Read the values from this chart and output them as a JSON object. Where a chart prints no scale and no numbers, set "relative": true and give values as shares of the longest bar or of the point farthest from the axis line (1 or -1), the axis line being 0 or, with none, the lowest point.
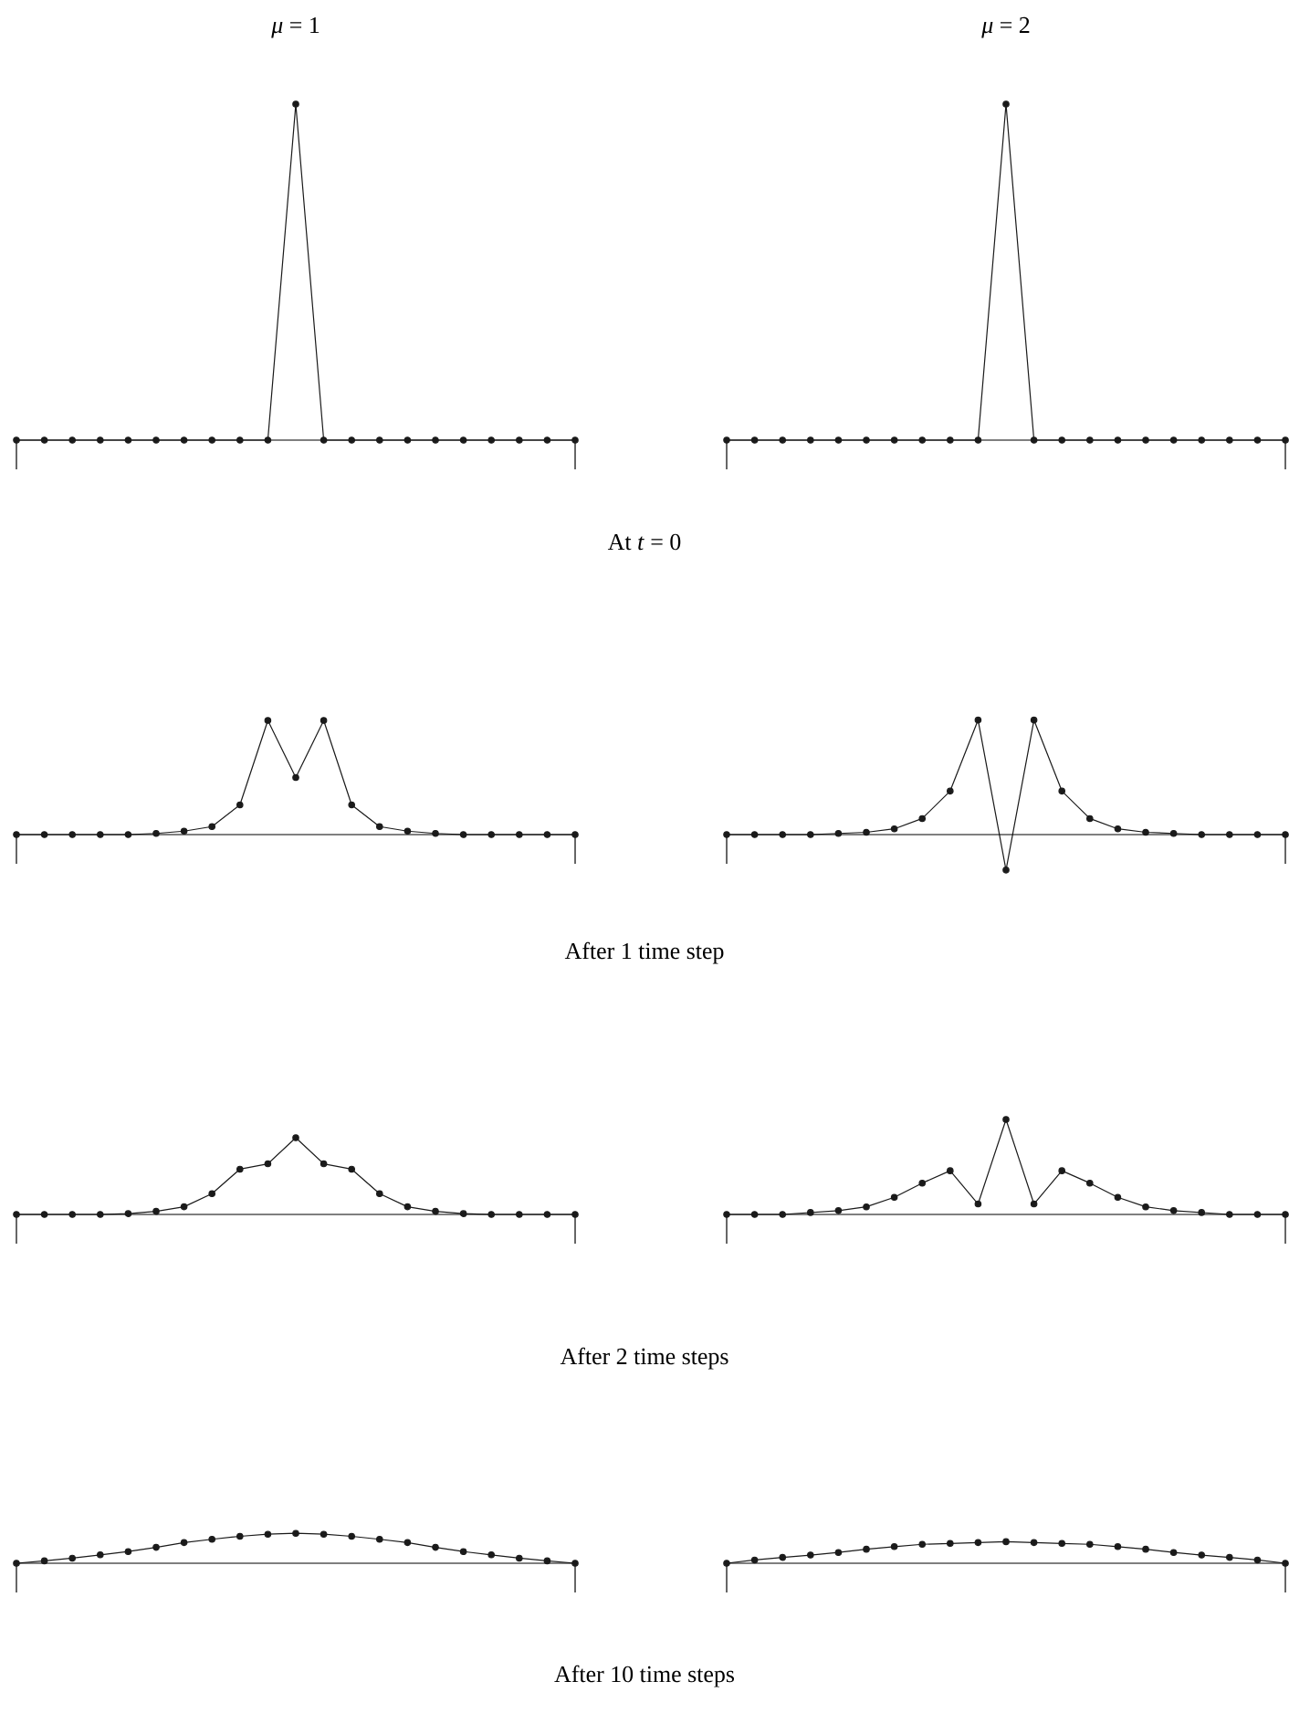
{
  "chart_data": [
    {
      "type": "line",
      "title": "*μ* = 1",
      "annotations": [
        "At *t* = 0"
      ],
      "relative": true,
      "marker": "circle",
      "color": "#1a1a1a",
      "categories": [
        null,
        null,
        null,
        null,
        null,
        null,
        null,
        null,
        null,
        null,
        null,
        null,
        null,
        null,
        null,
        null,
        null,
        null,
        null,
        null,
        null
      ],
      "values": [
        0,
        0,
        0,
        0,
        0,
        0,
        0,
        0,
        0,
        0,
        1,
        0,
        0,
        0,
        0,
        0,
        0,
        0,
        0,
        0,
        0
      ]
    },
    {
      "type": "line",
      "title": "*μ* = 2",
      "relative": true,
      "marker": "circle",
      "color": "#1a1a1a",
      "categories": [
        null,
        null,
        null,
        null,
        null,
        null,
        null,
        null,
        null,
        null,
        null,
        null,
        null,
        null,
        null,
        null,
        null,
        null,
        null,
        null,
        null
      ],
      "values": [
        0,
        0,
        0,
        0,
        0,
        0,
        0,
        0,
        0,
        0,
        1,
        0,
        0,
        0,
        0,
        0,
        0,
        0,
        0,
        0,
        0
      ]
    },
    {
      "type": "line",
      "annotations": [
        "After 1 time step"
      ],
      "relative": true,
      "marker": "circle",
      "color": "#1a1a1a",
      "categories": [
        null,
        null,
        null,
        null,
        null,
        null,
        null,
        null,
        null,
        null,
        null,
        null,
        null,
        null,
        null,
        null,
        null,
        null,
        null,
        null,
        null
      ],
      "values": [
        0,
        0,
        0,
        0,
        0,
        0.01,
        0.03,
        0.07,
        0.26,
        1,
        0.5,
        1,
        0.26,
        0.07,
        0.03,
        0.01,
        0,
        0,
        0,
        0,
        0
      ]
    },
    {
      "type": "line",
      "relative": true,
      "marker": "circle",
      "color": "#1a1a1a",
      "categories": [
        null,
        null,
        null,
        null,
        null,
        null,
        null,
        null,
        null,
        null,
        null,
        null,
        null,
        null,
        null,
        null,
        null,
        null,
        null,
        null,
        null
      ],
      "values": [
        0,
        0,
        0,
        0,
        0.01,
        0.02,
        0.05,
        0.14,
        0.38,
        1,
        -0.31,
        1,
        0.38,
        0.14,
        0.05,
        0.02,
        0.01,
        0,
        0,
        0,
        0
      ]
    },
    {
      "type": "line",
      "annotations": [
        "After 2 time steps"
      ],
      "relative": true,
      "marker": "circle",
      "color": "#1a1a1a",
      "categories": [
        null,
        null,
        null,
        null,
        null,
        null,
        null,
        null,
        null,
        null,
        null,
        null,
        null,
        null,
        null,
        null,
        null,
        null,
        null,
        null,
        null
      ],
      "values": [
        0,
        0,
        0,
        0,
        0.01,
        0.04,
        0.1,
        0.27,
        0.59,
        0.66,
        1,
        0.66,
        0.59,
        0.27,
        0.1,
        0.04,
        0.01,
        0,
        0,
        0,
        0
      ]
    },
    {
      "type": "line",
      "relative": true,
      "marker": "circle",
      "color": "#1a1a1a",
      "categories": [
        null,
        null,
        null,
        null,
        null,
        null,
        null,
        null,
        null,
        null,
        null,
        null,
        null,
        null,
        null,
        null,
        null,
        null,
        null,
        null,
        null
      ],
      "values": [
        0,
        0,
        0,
        0.02,
        0.04,
        0.08,
        0.18,
        0.33,
        0.46,
        0.11,
        1,
        0.11,
        0.46,
        0.33,
        0.18,
        0.08,
        0.04,
        0.02,
        0,
        0,
        0
      ]
    },
    {
      "type": "line",
      "annotations": [
        "After 10 time steps"
      ],
      "relative": true,
      "marker": "circle",
      "color": "#1a1a1a",
      "categories": [
        null,
        null,
        null,
        null,
        null,
        null,
        null,
        null,
        null,
        null,
        null,
        null,
        null,
        null,
        null,
        null,
        null,
        null,
        null,
        null,
        null
      ],
      "values": [
        0,
        0.08,
        0.17,
        0.28,
        0.39,
        0.53,
        0.69,
        0.8,
        0.9,
        0.97,
        1,
        0.97,
        0.9,
        0.8,
        0.69,
        0.53,
        0.39,
        0.28,
        0.17,
        0.08,
        0
      ]
    },
    {
      "type": "line",
      "relative": true,
      "marker": "circle",
      "color": "#1a1a1a",
      "categories": [
        null,
        null,
        null,
        null,
        null,
        null,
        null,
        null,
        null,
        null,
        null,
        null,
        null,
        null,
        null,
        null,
        null,
        null,
        null,
        null,
        null
      ],
      "values": [
        0,
        0.15,
        0.27,
        0.38,
        0.5,
        0.65,
        0.77,
        0.88,
        0.92,
        0.96,
        1,
        0.96,
        0.92,
        0.88,
        0.77,
        0.65,
        0.5,
        0.38,
        0.27,
        0.15,
        0
      ]
    }
  ]
}
